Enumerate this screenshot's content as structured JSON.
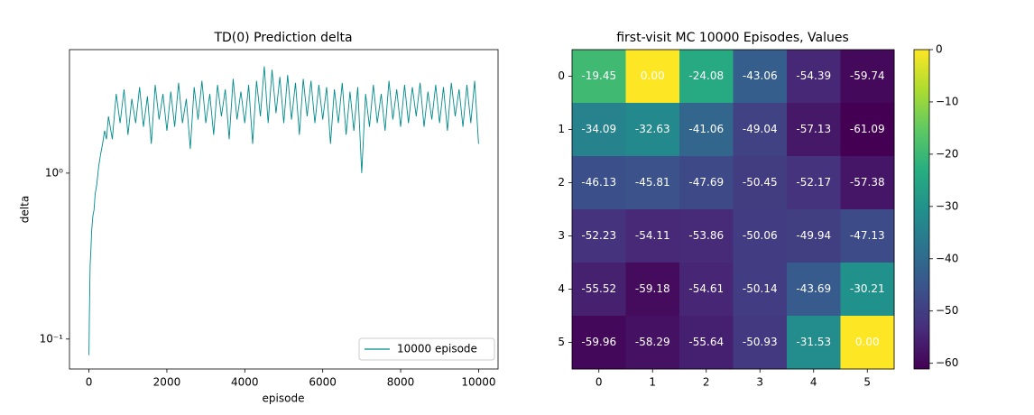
{
  "chart_data": [
    {
      "type": "line",
      "title": "TD(0) Prediction delta",
      "x_label": "episode",
      "y_label": "delta",
      "log_y": true,
      "legend": "lower right",
      "xlim": [
        -500,
        10500
      ],
      "xticks": [
        0,
        2000,
        4000,
        6000,
        8000,
        10000
      ],
      "ylim": [
        0.066,
        5.55
      ],
      "yticks": [
        {
          "value": 0.1,
          "label": "10⁻¹"
        },
        {
          "value": 1,
          "label": "10⁰"
        }
      ],
      "x": [
        0,
        10,
        20,
        30,
        50,
        70,
        100,
        130,
        160,
        200,
        250,
        300,
        350,
        400,
        450,
        500,
        600,
        700,
        800,
        900,
        1000,
        1100,
        1200,
        1300,
        1400,
        1500,
        1600,
        1700,
        1800,
        1900,
        2000,
        2100,
        2200,
        2300,
        2400,
        2500,
        2600,
        2700,
        2800,
        2900,
        3000,
        3100,
        3200,
        3300,
        3400,
        3500,
        3600,
        3700,
        3800,
        3900,
        4000,
        4100,
        4200,
        4300,
        4400,
        4500,
        4600,
        4700,
        4800,
        4900,
        5000,
        5100,
        5200,
        5300,
        5400,
        5500,
        5600,
        5700,
        5800,
        5900,
        6000,
        6100,
        6200,
        6300,
        6400,
        6500,
        6600,
        6700,
        6800,
        6900,
        7000,
        7100,
        7200,
        7300,
        7400,
        7500,
        7600,
        7700,
        7800,
        7900,
        8000,
        8100,
        8200,
        8300,
        8400,
        8500,
        8600,
        8700,
        8800,
        8900,
        9000,
        9100,
        9200,
        9300,
        9400,
        9500,
        9600,
        9700,
        9800,
        9900,
        10000
      ],
      "series": [
        {
          "name": "10000 episode",
          "color": "#008b8b",
          "values": [
            0.08,
            0.13,
            0.2,
            0.28,
            0.35,
            0.45,
            0.55,
            0.6,
            0.75,
            0.85,
            1.1,
            1.3,
            1.5,
            1.8,
            1.6,
            2.2,
            1.6,
            3.0,
            2.0,
            3.2,
            1.7,
            2.8,
            2.0,
            3.3,
            1.9,
            2.9,
            1.5,
            3.4,
            2.1,
            3.0,
            1.8,
            3.1,
            1.9,
            3.5,
            2.0,
            2.8,
            1.4,
            3.3,
            2.1,
            3.6,
            2.0,
            3.0,
            1.7,
            3.4,
            2.2,
            3.2,
            1.6,
            3.7,
            2.1,
            3.1,
            2.0,
            3.4,
            1.5,
            3.6,
            2.2,
            4.4,
            2.0,
            4.2,
            2.3,
            3.8,
            2.0,
            3.9,
            2.1,
            3.5,
            1.7,
            3.7,
            2.2,
            3.6,
            2.0,
            3.4,
            2.1,
            3.3,
            1.5,
            3.2,
            2.0,
            3.5,
            1.7,
            3.1,
            1.8,
            3.3,
            1.0,
            3.0,
            1.9,
            3.4,
            2.0,
            3.0,
            1.8,
            3.6,
            2.1,
            3.2,
            1.9,
            3.4,
            2.0,
            3.3,
            2.2,
            3.5,
            1.9,
            3.1,
            2.1,
            3.4,
            2.0,
            3.3,
            1.8,
            3.5,
            2.2,
            3.2,
            1.9,
            3.4,
            2.0,
            3.6,
            1.5
          ]
        }
      ]
    },
    {
      "type": "heatmap",
      "title": "first-visit MC 10000 Episodes, Values",
      "cmap": "viridis",
      "xlim": [
        -0.5,
        5.5
      ],
      "ylim": [
        -0.5,
        5.5
      ],
      "xticks": [
        0,
        1,
        2,
        3,
        4,
        5
      ],
      "yticks": [
        0,
        1,
        2,
        3,
        4,
        5
      ],
      "values": [
        [
          -19.45,
          0,
          -24.08,
          -43.06,
          -54.39,
          -59.74
        ],
        [
          -34.09,
          -32.63,
          -41.06,
          -49.04,
          -57.13,
          -61.09
        ],
        [
          -46.13,
          -45.81,
          -47.69,
          -50.45,
          -52.17,
          -57.38
        ],
        [
          -52.23,
          -54.11,
          -53.86,
          -50.06,
          -49.94,
          -47.13
        ],
        [
          -55.52,
          -59.18,
          -54.61,
          -50.14,
          -43.69,
          -30.21
        ],
        [
          -59.96,
          -58.29,
          -55.64,
          -50.93,
          -31.53,
          0
        ]
      ],
      "value_labels": [
        [
          "-19.45",
          "0.00",
          "-24.08",
          "-43.06",
          "-54.39",
          "-59.74"
        ],
        [
          "-34.09",
          "-32.63",
          "-41.06",
          "-49.04",
          "-57.13",
          "-61.09"
        ],
        [
          "-46.13",
          "-45.81",
          "-47.69",
          "-50.45",
          "-52.17",
          "-57.38"
        ],
        [
          "-52.23",
          "-54.11",
          "-53.86",
          "-50.06",
          "-49.94",
          "-47.13"
        ],
        [
          "-55.52",
          "-59.18",
          "-54.61",
          "-50.14",
          "-43.69",
          "-30.21"
        ],
        [
          "-59.96",
          "-58.29",
          "-55.64",
          "-50.93",
          "-31.53",
          "0.00"
        ]
      ],
      "clim": [
        -61.09,
        0
      ],
      "cticks": [
        {
          "value": 0,
          "label": "0"
        },
        {
          "value": -10,
          "label": "−10"
        },
        {
          "value": -20,
          "label": "−20"
        },
        {
          "value": -30,
          "label": "−30"
        },
        {
          "value": -40,
          "label": "−40"
        },
        {
          "value": -50,
          "label": "−50"
        },
        {
          "value": -60,
          "label": "−60"
        }
      ]
    }
  ]
}
